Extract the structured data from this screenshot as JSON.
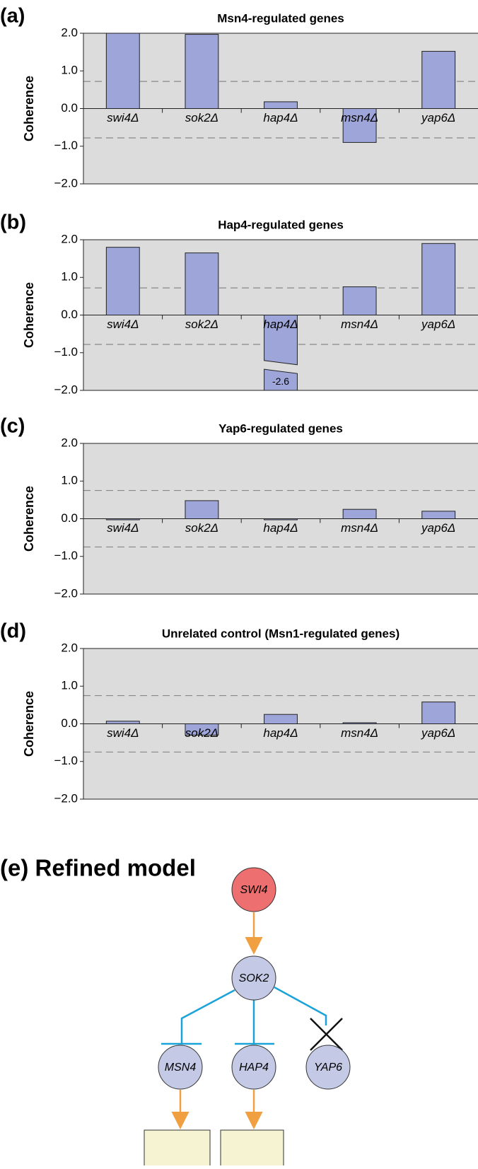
{
  "chart_data": [
    {
      "type": "bar",
      "panel": "(a)",
      "title": "Msn4-regulated genes",
      "ylabel": "Coherence",
      "categories": [
        "swi4Δ",
        "sok2Δ",
        "hap4Δ",
        "msn4Δ",
        "yap6Δ"
      ],
      "values": [
        2.0,
        1.97,
        0.18,
        -0.9,
        1.52
      ],
      "color": "#9ea6d9",
      "ylim": [
        -2,
        2
      ],
      "yticks": [
        {
          "value": -2,
          "label": "−2.0"
        },
        {
          "value": -1,
          "label": "−1.0"
        },
        {
          "value": 0,
          "label": "0.0"
        },
        {
          "value": 1,
          "label": "1.0"
        },
        {
          "value": 2,
          "label": "2.0"
        }
      ],
      "reference_lines": [
        0.72,
        -0.78
      ]
    },
    {
      "type": "bar",
      "panel": "(b)",
      "title": "Hap4-regulated genes",
      "ylabel": "Coherence",
      "categories": [
        "swi4Δ",
        "sok2Δ",
        "hap4Δ",
        "msn4Δ",
        "yap6Δ"
      ],
      "values": [
        1.8,
        1.65,
        -2.6,
        0.75,
        1.9
      ],
      "value_labels": [
        null,
        null,
        "-2.6",
        null,
        null
      ],
      "color": "#9ea6d9",
      "ylim": [
        -2,
        2
      ],
      "yticks": [
        {
          "value": -2,
          "label": "−2.0"
        },
        {
          "value": -1,
          "label": "−1.0"
        },
        {
          "value": 0,
          "label": "0.0"
        },
        {
          "value": 1,
          "label": "1.0"
        },
        {
          "value": 2,
          "label": "2.0"
        }
      ],
      "reference_lines": [
        0.72,
        -0.78
      ]
    },
    {
      "type": "bar",
      "panel": "(c)",
      "title": "Yap6-regulated genes",
      "ylabel": "Coherence",
      "categories": [
        "swi4Δ",
        "sok2Δ",
        "hap4Δ",
        "msn4Δ",
        "yap6Δ"
      ],
      "values": [
        -0.02,
        0.48,
        -0.02,
        0.25,
        0.2
      ],
      "color": "#9ea6d9",
      "ylim": [
        -2,
        2
      ],
      "yticks": [
        {
          "value": -2,
          "label": "−2.0"
        },
        {
          "value": -1,
          "label": "−1.0"
        },
        {
          "value": 0,
          "label": "0.0"
        },
        {
          "value": 1,
          "label": "1.0"
        },
        {
          "value": 2,
          "label": "2.0"
        }
      ],
      "reference_lines": [
        0.75,
        -0.75
      ]
    },
    {
      "type": "bar",
      "panel": "(d)",
      "title": "Unrelated control (Msn1-regulated genes)",
      "ylabel": "Coherence",
      "categories": [
        "swi4Δ",
        "sok2Δ",
        "hap4Δ",
        "msn4Δ",
        "yap6Δ"
      ],
      "values": [
        0.07,
        -0.3,
        0.25,
        0.03,
        0.58
      ],
      "color": "#9ea6d9",
      "ylim": [
        -2,
        2
      ],
      "yticks": [
        {
          "value": -2,
          "label": "−2.0"
        },
        {
          "value": -1,
          "label": "−1.0"
        },
        {
          "value": 0,
          "label": "0.0"
        },
        {
          "value": 1,
          "label": "1.0"
        },
        {
          "value": 2,
          "label": "2.0"
        }
      ],
      "reference_lines": [
        0.75,
        -0.75
      ]
    }
  ],
  "diagram": {
    "title": "(e) Refined model",
    "nodes": [
      {
        "label": "SWI4"
      },
      {
        "label": "SOK2"
      },
      {
        "label": "MSN4"
      },
      {
        "label": "HAP4"
      },
      {
        "label": "YAP6"
      }
    ]
  }
}
